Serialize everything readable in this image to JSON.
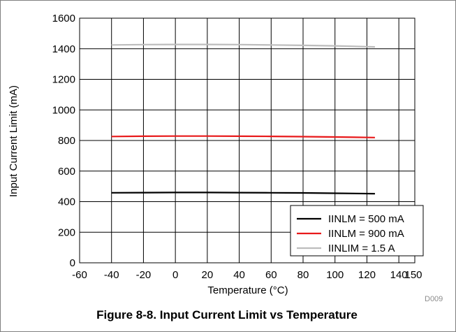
{
  "chart_data": {
    "type": "line",
    "title": "",
    "xlabel": "Temperature (°C)",
    "ylabel": "Input Current Limit (mA)",
    "xlim": [
      -60,
      150
    ],
    "ylim": [
      0,
      1600
    ],
    "x_ticks": [
      -60,
      -40,
      -20,
      0,
      20,
      40,
      60,
      80,
      100,
      120,
      140
    ],
    "x_tick_extra": 150,
    "y_ticks": [
      0,
      200,
      400,
      600,
      800,
      1000,
      1200,
      1400,
      1600
    ],
    "grid": true,
    "legend_position": "bottom-right",
    "series": [
      {
        "name": "IINLM = 500 mA",
        "color": "#000000",
        "x": [
          -40,
          -20,
          0,
          20,
          40,
          60,
          80,
          100,
          125
        ],
        "y": [
          458,
          459,
          460,
          460,
          459,
          458,
          457,
          455,
          452
        ]
      },
      {
        "name": "IINLM = 900 mA",
        "color": "#e8191a",
        "x": [
          -40,
          -20,
          0,
          20,
          40,
          60,
          80,
          100,
          125
        ],
        "y": [
          826,
          828,
          829,
          829,
          828,
          827,
          825,
          823,
          819
        ]
      },
      {
        "name": "IINLIM = 1.5 A",
        "color": "#bdbdbd",
        "x": [
          -40,
          -20,
          0,
          20,
          40,
          60,
          80,
          100,
          125
        ],
        "y": [
          1425,
          1427,
          1428,
          1428,
          1427,
          1425,
          1422,
          1419,
          1412
        ]
      }
    ]
  },
  "figure_caption": "Figure 8-8. Input Current Limit vs Temperature",
  "figure_code": "D009"
}
